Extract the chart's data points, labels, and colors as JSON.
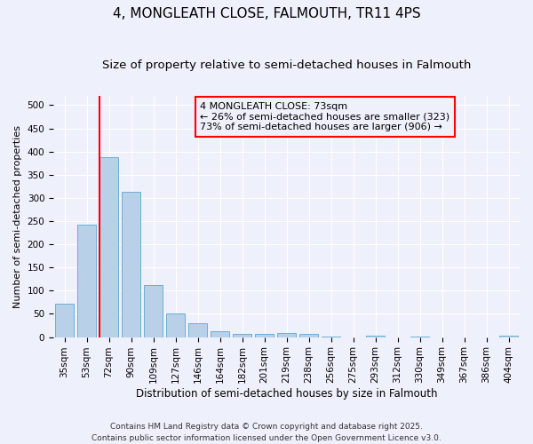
{
  "title": "4, MONGLEATH CLOSE, FALMOUTH, TR11 4PS",
  "subtitle": "Size of property relative to semi-detached houses in Falmouth",
  "xlabel": "Distribution of semi-detached houses by size in Falmouth",
  "ylabel": "Number of semi-detached properties",
  "categories": [
    "35sqm",
    "53sqm",
    "72sqm",
    "90sqm",
    "109sqm",
    "127sqm",
    "146sqm",
    "164sqm",
    "182sqm",
    "201sqm",
    "219sqm",
    "238sqm",
    "256sqm",
    "275sqm",
    "293sqm",
    "312sqm",
    "330sqm",
    "349sqm",
    "367sqm",
    "386sqm",
    "404sqm"
  ],
  "values": [
    72,
    242,
    388,
    314,
    112,
    50,
    29,
    13,
    7,
    7,
    8,
    6,
    2,
    0,
    3,
    0,
    1,
    0,
    0,
    0,
    3
  ],
  "bar_color": "#b8d0e8",
  "bar_edge_color": "#6baed6",
  "property_line_index": 2,
  "annotation_text_line1": "4 MONGLEATH CLOSE: 73sqm",
  "annotation_text_line2": "← 26% of semi-detached houses are smaller (323)",
  "annotation_text_line3": "73% of semi-detached houses are larger (906) →",
  "ylim": [
    0,
    520
  ],
  "yticks": [
    0,
    50,
    100,
    150,
    200,
    250,
    300,
    350,
    400,
    450,
    500
  ],
  "background_color": "#eef1fb",
  "grid_color": "#ffffff",
  "footer": "Contains HM Land Registry data © Crown copyright and database right 2025.\nContains public sector information licensed under the Open Government Licence v3.0.",
  "title_fontsize": 11,
  "subtitle_fontsize": 9.5,
  "annotation_fontsize": 8,
  "xlabel_fontsize": 8.5,
  "ylabel_fontsize": 8,
  "tick_fontsize": 7.5,
  "footer_fontsize": 6.5
}
